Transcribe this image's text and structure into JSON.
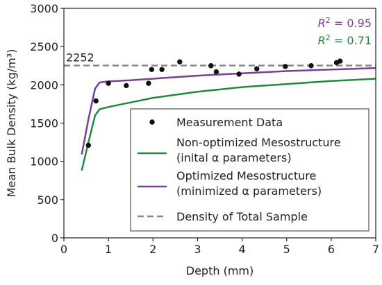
{
  "chart_data": {
    "type": "scatter",
    "xlabel": "Depth (mm)",
    "ylabel": "Mean Bulk Density (kg/m³)",
    "xlim": [
      0,
      7
    ],
    "ylim": [
      0,
      3000
    ],
    "xticks": [
      "0",
      "1",
      "2",
      "3",
      "4",
      "5",
      "6",
      "7"
    ],
    "yticks": [
      "0",
      "500",
      "1000",
      "1500",
      "2000",
      "2500",
      "3000"
    ],
    "grid": false,
    "legend_position": "bottom-right",
    "annotations": {
      "reference_value_label": "2252",
      "r2_optimized": {
        "prefix": "R",
        "sup": "2",
        "suffix": " = 0.95",
        "color": "#7a3d98"
      },
      "r2_nonoptimized": {
        "prefix": "R",
        "sup": "2",
        "suffix": " = 0.71",
        "color": "#1f8a3c"
      }
    },
    "series": [
      {
        "name": "Measurement Data",
        "kind": "scatter",
        "color": "#111111",
        "x": [
          0.55,
          0.72,
          1.0,
          1.4,
          1.9,
          1.97,
          2.2,
          2.6,
          3.3,
          3.42,
          3.93,
          4.33,
          4.97,
          5.55,
          6.12,
          6.2
        ],
        "y": [
          1210,
          1790,
          2020,
          1990,
          2020,
          2200,
          2200,
          2300,
          2250,
          2170,
          2140,
          2210,
          2240,
          2250,
          2290,
          2310
        ]
      },
      {
        "name": "Non-optimized Mesostructure",
        "name_line2": "(inital α parameters)",
        "kind": "line",
        "color": "#1f8a3c",
        "x": [
          0.4,
          0.55,
          0.7,
          0.8,
          1.0,
          1.5,
          2.0,
          2.5,
          3.0,
          3.5,
          4.0,
          4.5,
          5.0,
          5.5,
          6.0,
          6.5,
          7.0
        ],
        "y": [
          880,
          1250,
          1600,
          1680,
          1710,
          1770,
          1830,
          1870,
          1910,
          1940,
          1970,
          1990,
          2010,
          2030,
          2050,
          2065,
          2080
        ]
      },
      {
        "name": "Optimized Mesostructure",
        "name_line2": "(minimized α parameters)",
        "kind": "line",
        "color": "#7a3d98",
        "x": [
          0.4,
          0.55,
          0.7,
          0.8,
          1.0,
          1.5,
          2.0,
          2.5,
          3.0,
          3.5,
          4.0,
          4.5,
          5.0,
          5.5,
          6.0,
          6.5,
          7.0
        ],
        "y": [
          1090,
          1550,
          1950,
          2030,
          2045,
          2060,
          2080,
          2100,
          2120,
          2135,
          2150,
          2165,
          2180,
          2190,
          2200,
          2210,
          2220
        ]
      },
      {
        "name": "Density of Total Sample",
        "kind": "hline",
        "color": "#888888",
        "y": 2252
      }
    ]
  }
}
